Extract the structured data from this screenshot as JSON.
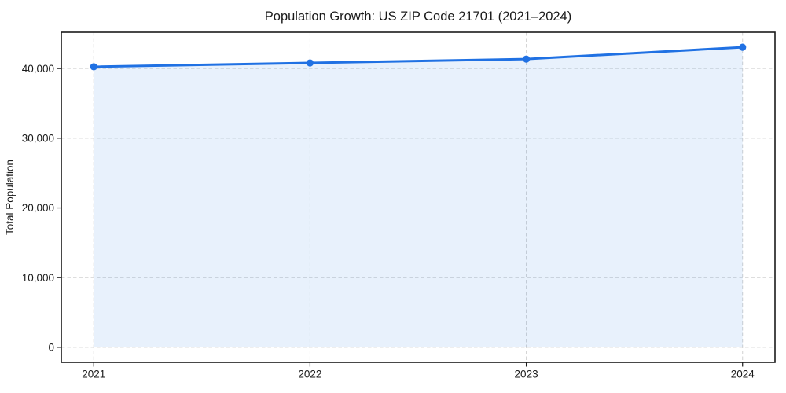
{
  "chart_data": {
    "type": "area",
    "title": "Population Growth: US ZIP Code 21701 (2021–2024)",
    "xlabel": "",
    "ylabel": "Total Population",
    "x": [
      2021,
      2022,
      2023,
      2024
    ],
    "series": [
      {
        "name": "Total Population",
        "values": [
          40250,
          40800,
          41350,
          43050
        ]
      }
    ],
    "xtick_labels": [
      "2021",
      "2022",
      "2023",
      "2024"
    ],
    "yticks": [
      0,
      10000,
      20000,
      30000,
      40000
    ],
    "ytick_labels": [
      "0",
      "10,000",
      "20,000",
      "30,000",
      "40,000"
    ],
    "xlim": [
      2020.85,
      2024.15
    ],
    "ylim": [
      -2153,
      45203
    ],
    "grid": true,
    "grid_style": "dashed",
    "legend": false,
    "fill_to_zero": true,
    "colors": {
      "line": "#2071e3",
      "marker": "#2071e3",
      "fill": "rgba(32,113,227,0.10)",
      "grid": "#d2d2d2",
      "spine": "#1a1a1a",
      "tick": "#1a1a1a",
      "text": "#1a1a1a",
      "background": "#ffffff"
    }
  }
}
